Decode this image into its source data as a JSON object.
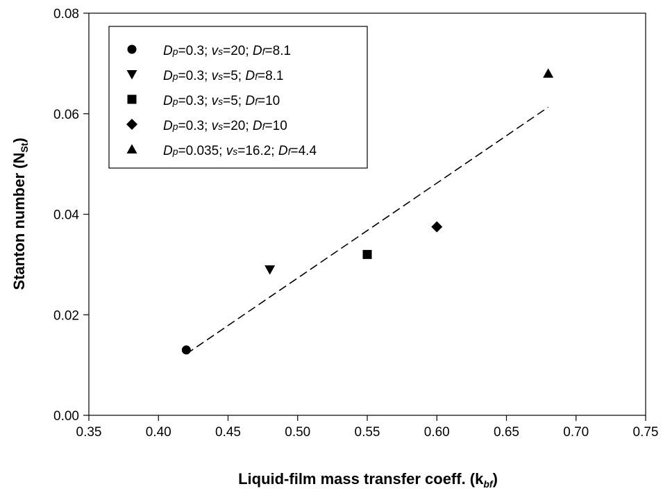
{
  "chart_data": {
    "type": "scatter",
    "title": "",
    "xlabel": {
      "main": "Liquid-film mass transfer coeff. (k",
      "sub": "bf",
      "close": ")"
    },
    "ylabel": {
      "main": "Stanton number (N",
      "sub": "St",
      "close": ")"
    },
    "xlim": [
      0.35,
      0.75
    ],
    "ylim": [
      0.0,
      0.08
    ],
    "xticks": [
      "0.35",
      "0.40",
      "0.45",
      "0.50",
      "0.55",
      "0.60",
      "0.65",
      "0.70",
      "0.75"
    ],
    "yticks": [
      "0.00",
      "0.02",
      "0.04",
      "0.06",
      "0.08"
    ],
    "grid": false,
    "legend_position": "top-left",
    "series": [
      {
        "marker": "circle",
        "x": [
          0.42
        ],
        "y": [
          0.013
        ],
        "legend": [
          {
            "t": "D",
            "i": true
          },
          {
            "t": "p",
            "i": true,
            "s": true
          },
          {
            "t": "=0.3; "
          },
          {
            "t": "v",
            "i": true
          },
          {
            "t": "s",
            "i": true,
            "s": true
          },
          {
            "t": "=20; "
          },
          {
            "t": "D",
            "i": true
          },
          {
            "t": "f",
            "i": true,
            "s": true
          },
          {
            "t": "=8.1"
          }
        ]
      },
      {
        "marker": "triangle-down",
        "x": [
          0.48
        ],
        "y": [
          0.029
        ],
        "legend": [
          {
            "t": "D",
            "i": true
          },
          {
            "t": "p",
            "i": true,
            "s": true
          },
          {
            "t": "=0.3; "
          },
          {
            "t": "v",
            "i": true
          },
          {
            "t": "s",
            "i": true,
            "s": true
          },
          {
            "t": "=5; "
          },
          {
            "t": "D",
            "i": true
          },
          {
            "t": "f",
            "i": true,
            "s": true
          },
          {
            "t": "=8.1"
          }
        ]
      },
      {
        "marker": "square",
        "x": [
          0.55
        ],
        "y": [
          0.032
        ],
        "legend": [
          {
            "t": "D",
            "i": true
          },
          {
            "t": "p",
            "i": true,
            "s": true
          },
          {
            "t": "=0.3; "
          },
          {
            "t": "v",
            "i": true
          },
          {
            "t": "s",
            "i": true,
            "s": true
          },
          {
            "t": "=5; "
          },
          {
            "t": "D",
            "i": true
          },
          {
            "t": "f",
            "i": true,
            "s": true
          },
          {
            "t": "=10"
          }
        ]
      },
      {
        "marker": "diamond",
        "x": [
          0.6
        ],
        "y": [
          0.0375
        ],
        "legend": [
          {
            "t": "D",
            "i": true
          },
          {
            "t": "p",
            "i": true,
            "s": true
          },
          {
            "t": "=0.3; "
          },
          {
            "t": "v",
            "i": true
          },
          {
            "t": "s",
            "i": true,
            "s": true
          },
          {
            "t": "=20; "
          },
          {
            "t": "D",
            "i": true
          },
          {
            "t": "f",
            "i": true,
            "s": true
          },
          {
            "t": "=10"
          }
        ]
      },
      {
        "marker": "triangle-up",
        "x": [
          0.68
        ],
        "y": [
          0.068
        ],
        "legend": [
          {
            "t": "D",
            "i": true
          },
          {
            "t": "p",
            "i": true,
            "s": true
          },
          {
            "t": "=0.035; "
          },
          {
            "t": "v",
            "i": true
          },
          {
            "t": "s",
            "i": true,
            "s": true
          },
          {
            "t": "=16.2; "
          },
          {
            "t": "D",
            "i": true
          },
          {
            "t": "f",
            "i": true,
            "s": true
          },
          {
            "t": "=4.4"
          }
        ]
      }
    ],
    "fit_line": {
      "style": "dashed",
      "x": [
        0.42,
        0.68
      ],
      "y": [
        0.0122,
        0.0613
      ]
    },
    "colors": {
      "marker": "#000000",
      "line": "#000000",
      "background": "#ffffff"
    }
  }
}
